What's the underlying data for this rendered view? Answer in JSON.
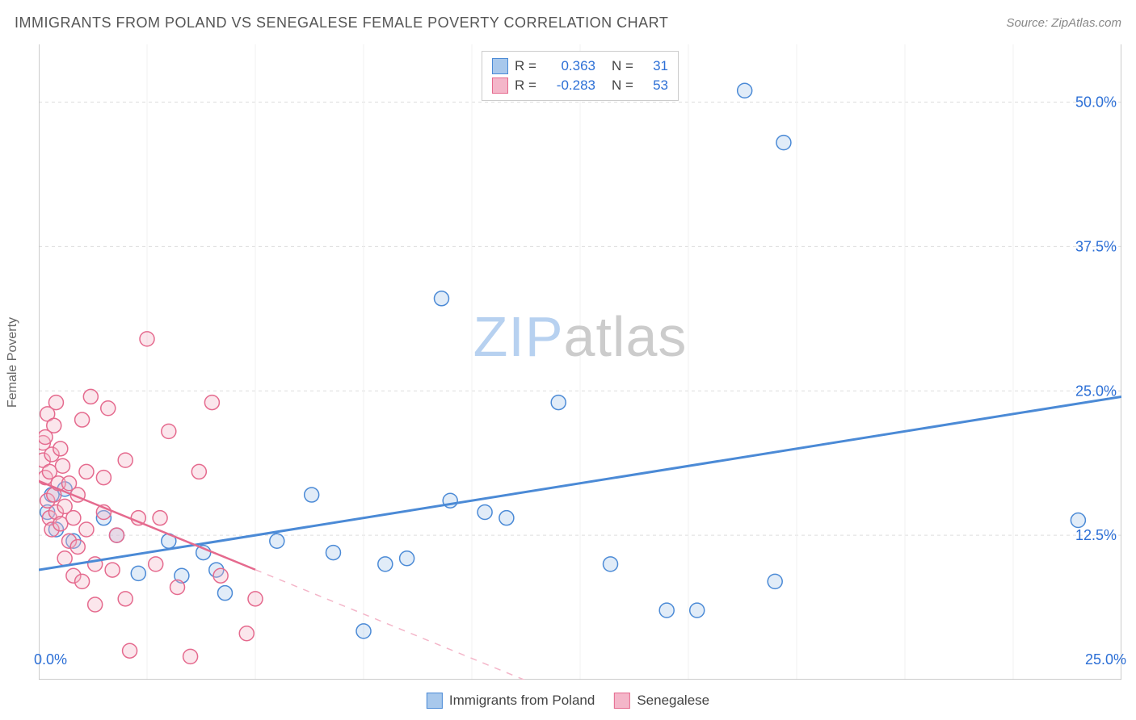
{
  "header": {
    "title": "IMMIGRANTS FROM POLAND VS SENEGALESE FEMALE POVERTY CORRELATION CHART",
    "source_label": "Source: ZipAtlas.com"
  },
  "chart": {
    "type": "scatter",
    "watermark": {
      "zip": "ZIP",
      "atlas": "atlas",
      "zip_color": "#b7d1f0",
      "atlas_color": "#cccccc"
    },
    "ylabel": "Female Poverty",
    "xlim": [
      0,
      25
    ],
    "ylim": [
      0,
      55
    ],
    "x_ticks": [
      0,
      25
    ],
    "x_tick_labels": [
      "0.0%",
      "25.0%"
    ],
    "y_ticks": [
      12.5,
      25.0,
      37.5,
      50.0
    ],
    "y_tick_labels": [
      "12.5%",
      "25.0%",
      "37.5%",
      "50.0%"
    ],
    "grid_color": "#dddddd",
    "axis_color": "#bbbbbb",
    "tick_label_color": "#2c6fd6",
    "background_color": "#ffffff",
    "marker_radius": 9,
    "marker_stroke_width": 1.5,
    "marker_fill_opacity": 0.35,
    "series": [
      {
        "name": "Immigrants from Poland",
        "color_stroke": "#4b8ad6",
        "color_fill": "#a8c8ec",
        "R": "0.363",
        "N": "31",
        "trend": {
          "x1": 0,
          "y1": 9.5,
          "x2": 25,
          "y2": 24.5,
          "dash_after_x": null,
          "width": 3
        },
        "points": [
          [
            0.2,
            14.5
          ],
          [
            0.3,
            16.0
          ],
          [
            0.4,
            13.0
          ],
          [
            0.6,
            16.5
          ],
          [
            0.8,
            12.0
          ],
          [
            1.5,
            14.0
          ],
          [
            1.8,
            12.5
          ],
          [
            2.3,
            9.2
          ],
          [
            3.0,
            12.0
          ],
          [
            3.3,
            9.0
          ],
          [
            3.8,
            11.0
          ],
          [
            4.1,
            9.5
          ],
          [
            4.3,
            7.5
          ],
          [
            5.5,
            12.0
          ],
          [
            6.3,
            16.0
          ],
          [
            6.8,
            11.0
          ],
          [
            7.5,
            4.2
          ],
          [
            8.0,
            10.0
          ],
          [
            8.5,
            10.5
          ],
          [
            9.3,
            33.0
          ],
          [
            9.5,
            15.5
          ],
          [
            10.3,
            14.5
          ],
          [
            10.8,
            14.0
          ],
          [
            12.0,
            24.0
          ],
          [
            13.2,
            10.0
          ],
          [
            14.5,
            6.0
          ],
          [
            15.2,
            6.0
          ],
          [
            16.3,
            51.0
          ],
          [
            17.2,
            46.5
          ],
          [
            17.0,
            8.5
          ],
          [
            24.0,
            13.8
          ]
        ]
      },
      {
        "name": "Senegalese",
        "color_stroke": "#e56a8e",
        "color_fill": "#f4b6c9",
        "R": "-0.283",
        "N": "53",
        "trend": {
          "x1": 0,
          "y1": 17.2,
          "x2": 12.5,
          "y2": -2,
          "dash_after_x": 5.0,
          "width": 2.5
        },
        "points": [
          [
            0.1,
            20.5
          ],
          [
            0.1,
            19.0
          ],
          [
            0.15,
            17.5
          ],
          [
            0.15,
            21.0
          ],
          [
            0.2,
            23.0
          ],
          [
            0.2,
            15.5
          ],
          [
            0.25,
            18.0
          ],
          [
            0.25,
            14.0
          ],
          [
            0.3,
            19.5
          ],
          [
            0.3,
            13.0
          ],
          [
            0.35,
            16.0
          ],
          [
            0.35,
            22.0
          ],
          [
            0.4,
            24.0
          ],
          [
            0.4,
            14.5
          ],
          [
            0.45,
            17.0
          ],
          [
            0.5,
            20.0
          ],
          [
            0.5,
            13.5
          ],
          [
            0.55,
            18.5
          ],
          [
            0.6,
            15.0
          ],
          [
            0.6,
            10.5
          ],
          [
            0.7,
            17.0
          ],
          [
            0.7,
            12.0
          ],
          [
            0.8,
            14.0
          ],
          [
            0.8,
            9.0
          ],
          [
            0.9,
            16.0
          ],
          [
            0.9,
            11.5
          ],
          [
            1.0,
            22.5
          ],
          [
            1.0,
            8.5
          ],
          [
            1.1,
            18.0
          ],
          [
            1.1,
            13.0
          ],
          [
            1.2,
            24.5
          ],
          [
            1.3,
            10.0
          ],
          [
            1.3,
            6.5
          ],
          [
            1.5,
            14.5
          ],
          [
            1.5,
            17.5
          ],
          [
            1.6,
            23.5
          ],
          [
            1.7,
            9.5
          ],
          [
            1.8,
            12.5
          ],
          [
            2.0,
            19.0
          ],
          [
            2.0,
            7.0
          ],
          [
            2.1,
            2.5
          ],
          [
            2.3,
            14.0
          ],
          [
            2.5,
            29.5
          ],
          [
            2.7,
            10.0
          ],
          [
            2.8,
            14.0
          ],
          [
            3.0,
            21.5
          ],
          [
            3.2,
            8.0
          ],
          [
            3.5,
            2.0
          ],
          [
            3.7,
            18.0
          ],
          [
            4.0,
            24.0
          ],
          [
            4.2,
            9.0
          ],
          [
            4.8,
            4.0
          ],
          [
            5.0,
            7.0
          ]
        ]
      }
    ],
    "legend_top": {
      "r_label": "R =",
      "n_label": "N =",
      "r_value_color": "#2c6fd6",
      "n_value_color": "#2c6fd6"
    }
  }
}
